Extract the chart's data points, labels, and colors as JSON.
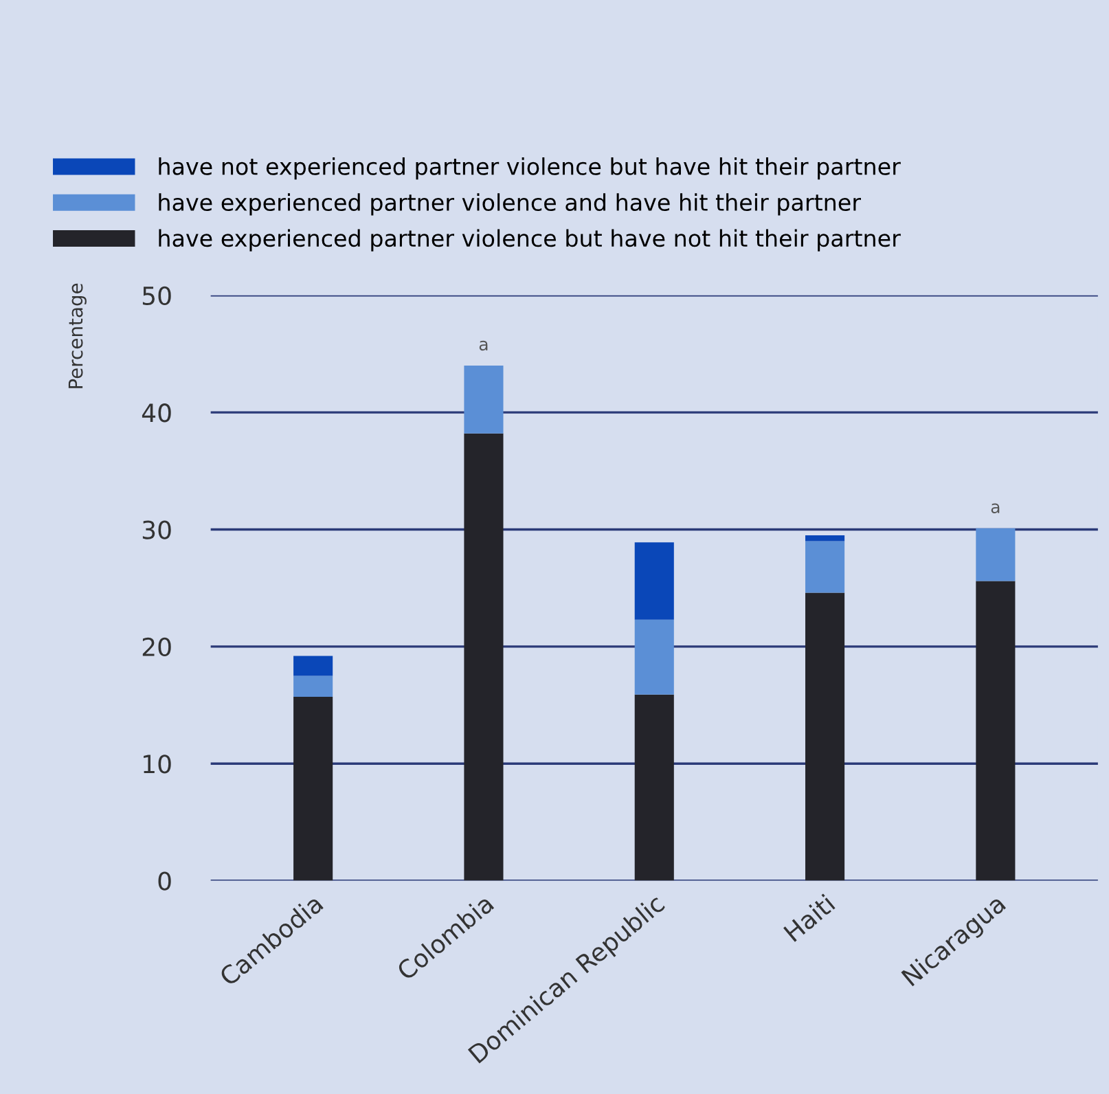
{
  "chart_data": {
    "type": "bar",
    "stacked": true,
    "ylabel": "Percentage",
    "categories": [
      "Cambodia",
      "Colombia",
      "Dominican Republic",
      "Haiti",
      "Nicaragua"
    ],
    "series": [
      {
        "name": "have experienced partner violence but have not hit their partner",
        "color": "#24242a",
        "values": [
          15.7,
          38.2,
          15.9,
          24.6,
          25.6
        ]
      },
      {
        "name": "have experienced partner violence and have hit their partner",
        "color": "#5b8fd6",
        "values": [
          1.8,
          5.8,
          6.4,
          4.4,
          4.5
        ]
      },
      {
        "name": "have not experienced partner violence but have hit their partner",
        "color": "#0a47b8",
        "values": [
          1.7,
          0,
          6.6,
          0.5,
          0
        ]
      }
    ],
    "ylim": [
      0,
      50
    ],
    "yticks": [
      0,
      10,
      20,
      30,
      40,
      50
    ],
    "grid": "y",
    "legend": "top",
    "annotations": [
      {
        "text": "a",
        "x": "Colombia",
        "y": 44.0
      },
      {
        "text": "a",
        "x": "Nicaragua",
        "y": 30.1
      }
    ]
  }
}
